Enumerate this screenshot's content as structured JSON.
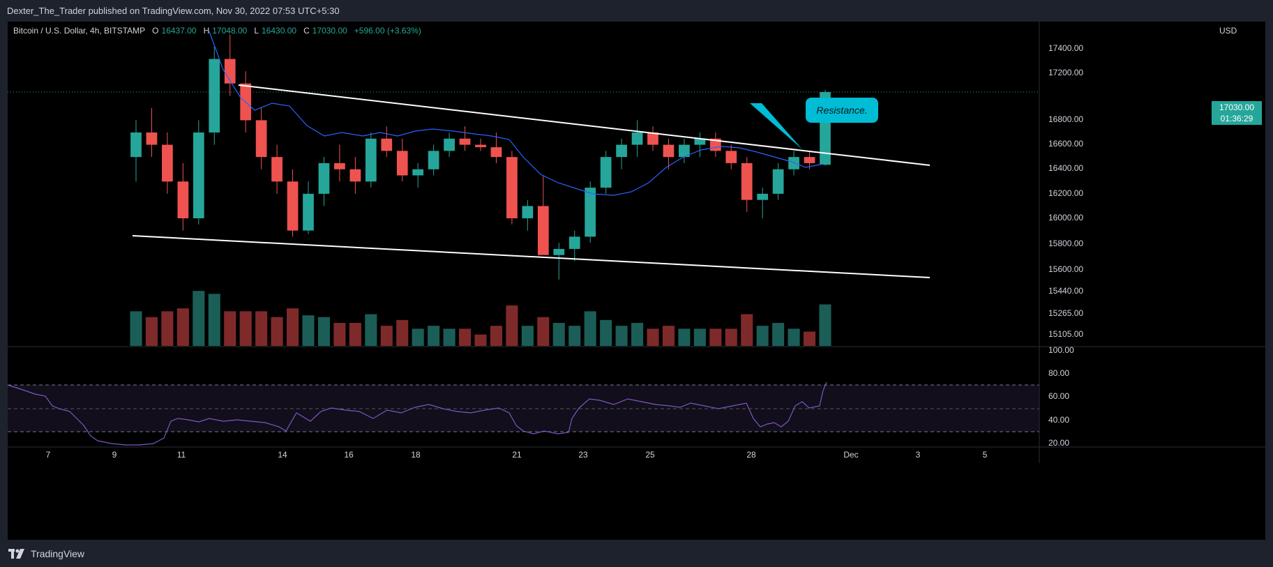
{
  "header": {
    "published_text": "Dexter_The_Trader published on TradingView.com, Nov 30, 2022 07:53 UTC+5:30"
  },
  "legend": {
    "symbol": "Bitcoin / U.S. Dollar, 4h, BITSTAMP",
    "open_key": "O",
    "open": "16437.00",
    "high_key": "H",
    "high": "17048.00",
    "low_key": "L",
    "low": "16430.00",
    "close_key": "C",
    "close": "17030.00",
    "change": "+596.00 (+3.63%)"
  },
  "price_axis": {
    "currency": "USD",
    "ticks": [
      "17400.00",
      "17200.00",
      "16800.00",
      "16600.00",
      "16400.00",
      "16200.00",
      "16000.00",
      "15800.00",
      "15600.00",
      "15440.00",
      "15265.00",
      "15105.00"
    ]
  },
  "current_price": {
    "price": "17030.00",
    "countdown": "01:36:29"
  },
  "rsi_axis": {
    "ticks": [
      "100.00",
      "80.00",
      "60.00",
      "40.00",
      "20.00"
    ]
  },
  "time_axis": {
    "ticks": [
      "7",
      "9",
      "11",
      "14",
      "16",
      "18",
      "21",
      "23",
      "25",
      "28",
      "Dec",
      "3",
      "5"
    ]
  },
  "annotation": {
    "label": "Resistance."
  },
  "footer": {
    "brand": "TradingView"
  },
  "colors": {
    "up": "#26a69a",
    "down": "#ef5350",
    "ma": "#2962ff",
    "rsi": "#7e57c2",
    "trend": "#ffffff",
    "callout": "#00bcd4"
  },
  "chart_data": {
    "type": "candlestick",
    "interval": "4h",
    "candles_ohlc": [
      [
        16500,
        16800,
        16300,
        16700
      ],
      [
        16700,
        16900,
        16500,
        16600
      ],
      [
        16600,
        16700,
        16200,
        16300
      ],
      [
        16300,
        16450,
        15900,
        16000
      ],
      [
        16000,
        16800,
        15950,
        16700
      ],
      [
        16700,
        17400,
        16600,
        17300
      ],
      [
        17300,
        17500,
        17000,
        17100
      ],
      [
        17100,
        17200,
        16700,
        16800
      ],
      [
        16800,
        16900,
        16400,
        16500
      ],
      [
        16500,
        16600,
        16200,
        16300
      ],
      [
        16300,
        16400,
        15850,
        15900
      ],
      [
        15900,
        16300,
        15870,
        16200
      ],
      [
        16200,
        16500,
        16100,
        16450
      ],
      [
        16450,
        16600,
        16300,
        16400
      ],
      [
        16400,
        16500,
        16200,
        16300
      ],
      [
        16300,
        16700,
        16250,
        16650
      ],
      [
        16650,
        16750,
        16500,
        16550
      ],
      [
        16550,
        16650,
        16300,
        16350
      ],
      [
        16350,
        16450,
        16250,
        16400
      ],
      [
        16400,
        16600,
        16350,
        16550
      ],
      [
        16550,
        16700,
        16500,
        16650
      ],
      [
        16650,
        16750,
        16550,
        16600
      ],
      [
        16600,
        16650,
        16550,
        16580
      ],
      [
        16580,
        16700,
        16450,
        16500
      ],
      [
        16500,
        16550,
        15950,
        16000
      ],
      [
        16000,
        16150,
        15900,
        16100
      ],
      [
        16100,
        16350,
        15950,
        15700
      ],
      [
        15700,
        15800,
        15500,
        15750
      ],
      [
        15750,
        15900,
        15650,
        15850
      ],
      [
        15850,
        16300,
        15800,
        16250
      ],
      [
        16250,
        16550,
        16200,
        16500
      ],
      [
        16500,
        16650,
        16400,
        16600
      ],
      [
        16600,
        16800,
        16500,
        16700
      ],
      [
        16700,
        16750,
        16550,
        16600
      ],
      [
        16600,
        16650,
        16400,
        16500
      ],
      [
        16500,
        16650,
        16450,
        16600
      ],
      [
        16600,
        16700,
        16500,
        16650
      ],
      [
        16650,
        16700,
        16500,
        16550
      ],
      [
        16550,
        16600,
        16400,
        16450
      ],
      [
        16450,
        16500,
        16050,
        16150
      ],
      [
        16150,
        16250,
        16000,
        16200
      ],
      [
        16200,
        16450,
        16150,
        16400
      ],
      [
        16400,
        16550,
        16350,
        16500
      ],
      [
        16500,
        16550,
        16400,
        16450
      ],
      [
        16437,
        17048,
        16430,
        17030
      ]
    ],
    "trendlines": [
      {
        "name": "upper",
        "from": [
          "Nov 12",
          17060
        ],
        "to": [
          "Dec 3",
          16440
        ]
      },
      {
        "name": "lower",
        "from": [
          "Nov 9",
          15880
        ],
        "to": [
          "Dec 3",
          15550
        ]
      }
    ],
    "rsi_levels": [
      70,
      50,
      30
    ]
  }
}
